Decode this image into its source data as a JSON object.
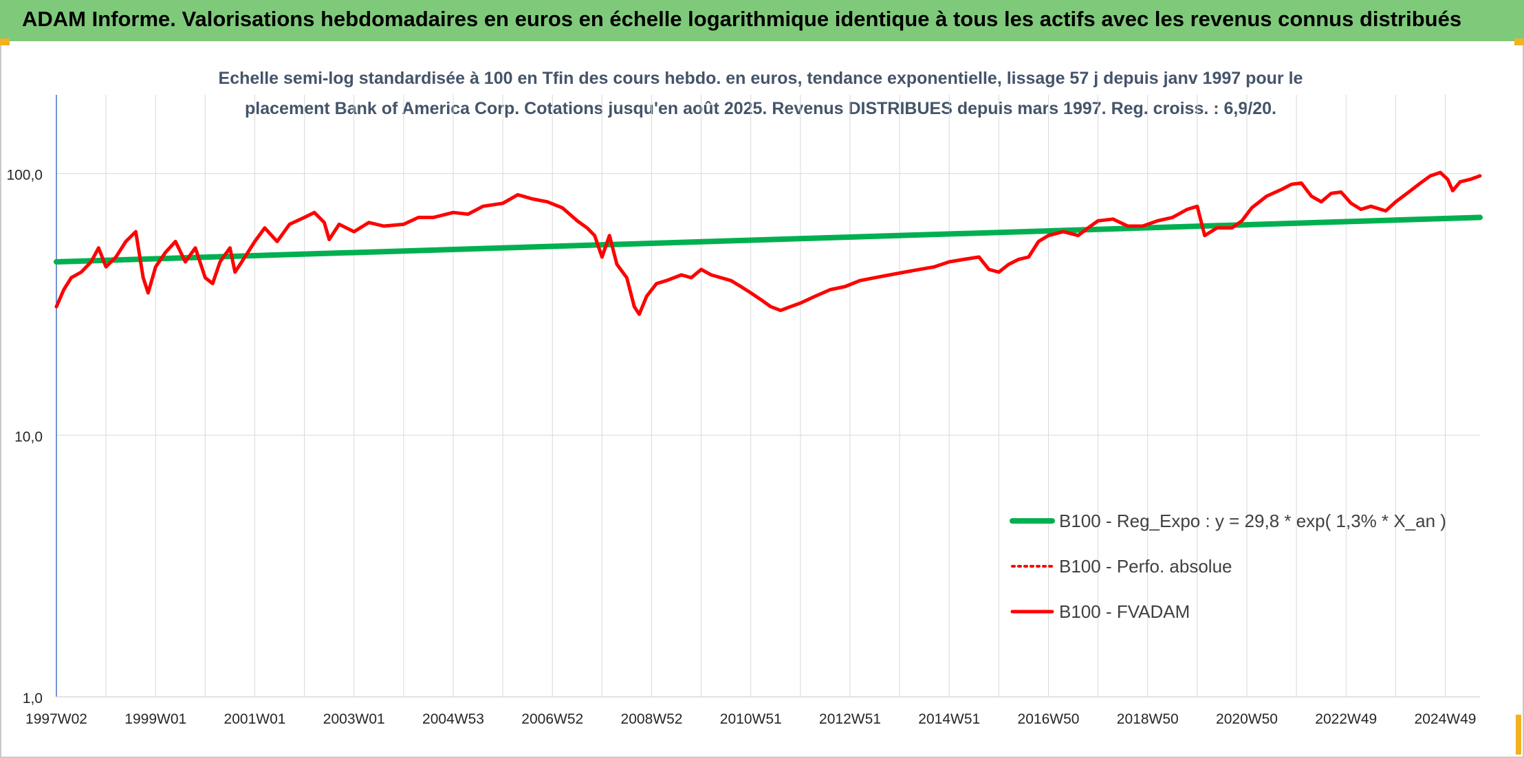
{
  "header": {
    "title": "ADAM Informe. Valorisations hebdomadaires en euros en échelle logarithmique identique à tous les actifs avec les revenus connus distribués"
  },
  "chart_data": {
    "type": "line",
    "subtitle_lines": [
      "Echelle semi-log standardisée à 100 en Tfin des cours hebdo. en euros, tendance exponentielle, lissage 57 j depuis janv 1997 pour le",
      "placement Bank of America Corp. Cotations jusqu'en août 2025. Revenus DISTRIBUES depuis mars 1997. Reg. croiss. : 6,9/20."
    ],
    "y_scale": "log",
    "ylim": [
      1,
      200
    ],
    "y_ticks": [
      {
        "value": 1,
        "label": "1,0"
      },
      {
        "value": 10,
        "label": "10,0"
      },
      {
        "value": 100,
        "label": "100,0"
      }
    ],
    "xlim": [
      1997.0,
      2025.7
    ],
    "x_ticks": [
      {
        "label": "1997W02",
        "x": 1997.0
      },
      {
        "label": "1999W01",
        "x": 1999.0
      },
      {
        "label": "2001W01",
        "x": 2001.0
      },
      {
        "label": "2003W01",
        "x": 2003.0
      },
      {
        "label": "2004W53",
        "x": 2005.0
      },
      {
        "label": "2006W52",
        "x": 2007.0
      },
      {
        "label": "2008W52",
        "x": 2009.0
      },
      {
        "label": "2010W51",
        "x": 2011.0
      },
      {
        "label": "2012W51",
        "x": 2013.0
      },
      {
        "label": "2014W51",
        "x": 2015.0
      },
      {
        "label": "2016W50",
        "x": 2017.0
      },
      {
        "label": "2018W50",
        "x": 2019.0
      },
      {
        "label": "2020W50",
        "x": 2021.0
      },
      {
        "label": "2022W49",
        "x": 2023.0
      },
      {
        "label": "2024W49",
        "x": 2025.0
      }
    ],
    "vertical_grid_step": 1,
    "grid": true,
    "legend_position": "bottom-right",
    "series": [
      {
        "name": "B100 - Reg_Expo : y = 29,8 * exp( 1,3% *  X_an )",
        "color": "#00b050",
        "style": "solid",
        "points": [
          [
            1997.0,
            46
          ],
          [
            2025.7,
            68
          ]
        ]
      },
      {
        "name": "B100 - Perfo. absolue",
        "color": "#ff0000",
        "style": "dotted",
        "points": []
      },
      {
        "name": "B100 - FVADAM",
        "color": "#ff0000",
        "style": "solid",
        "points": [
          [
            1997.0,
            31
          ],
          [
            1997.15,
            36
          ],
          [
            1997.3,
            40
          ],
          [
            1997.5,
            42
          ],
          [
            1997.7,
            46
          ],
          [
            1997.85,
            52
          ],
          [
            1998.0,
            44
          ],
          [
            1998.2,
            48
          ],
          [
            1998.4,
            55
          ],
          [
            1998.6,
            60
          ],
          [
            1998.75,
            40
          ],
          [
            1998.85,
            35
          ],
          [
            1999.0,
            44
          ],
          [
            1999.2,
            50
          ],
          [
            1999.4,
            55
          ],
          [
            1999.6,
            46
          ],
          [
            1999.8,
            52
          ],
          [
            2000.0,
            40
          ],
          [
            2000.15,
            38
          ],
          [
            2000.3,
            46
          ],
          [
            2000.5,
            52
          ],
          [
            2000.6,
            42
          ],
          [
            2000.8,
            48
          ],
          [
            2001.0,
            55
          ],
          [
            2001.2,
            62
          ],
          [
            2001.45,
            55
          ],
          [
            2001.7,
            64
          ],
          [
            2002.0,
            68
          ],
          [
            2002.2,
            71
          ],
          [
            2002.4,
            65
          ],
          [
            2002.5,
            56
          ],
          [
            2002.7,
            64
          ],
          [
            2003.0,
            60
          ],
          [
            2003.3,
            65
          ],
          [
            2003.6,
            63
          ],
          [
            2004.0,
            64
          ],
          [
            2004.3,
            68
          ],
          [
            2004.6,
            68
          ],
          [
            2005.0,
            71
          ],
          [
            2005.3,
            70
          ],
          [
            2005.6,
            75
          ],
          [
            2006.0,
            77
          ],
          [
            2006.3,
            83
          ],
          [
            2006.6,
            80
          ],
          [
            2006.9,
            78
          ],
          [
            2007.2,
            74
          ],
          [
            2007.5,
            66
          ],
          [
            2007.7,
            62
          ],
          [
            2007.85,
            58
          ],
          [
            2008.0,
            48
          ],
          [
            2008.15,
            58
          ],
          [
            2008.3,
            45
          ],
          [
            2008.5,
            40
          ],
          [
            2008.65,
            31
          ],
          [
            2008.75,
            29
          ],
          [
            2008.9,
            34
          ],
          [
            2009.1,
            38
          ],
          [
            2009.3,
            39
          ],
          [
            2009.6,
            41
          ],
          [
            2009.8,
            40
          ],
          [
            2010.0,
            43
          ],
          [
            2010.2,
            41
          ],
          [
            2010.4,
            40
          ],
          [
            2010.6,
            39
          ],
          [
            2010.8,
            37
          ],
          [
            2011.0,
            35
          ],
          [
            2011.2,
            33
          ],
          [
            2011.4,
            31
          ],
          [
            2011.6,
            30
          ],
          [
            2011.8,
            31
          ],
          [
            2012.0,
            32
          ],
          [
            2012.3,
            34
          ],
          [
            2012.6,
            36
          ],
          [
            2012.9,
            37
          ],
          [
            2013.2,
            39
          ],
          [
            2013.5,
            40
          ],
          [
            2013.8,
            41
          ],
          [
            2014.1,
            42
          ],
          [
            2014.4,
            43
          ],
          [
            2014.7,
            44
          ],
          [
            2015.0,
            46
          ],
          [
            2015.3,
            47
          ],
          [
            2015.6,
            48
          ],
          [
            2015.8,
            43
          ],
          [
            2016.0,
            42
          ],
          [
            2016.2,
            45
          ],
          [
            2016.4,
            47
          ],
          [
            2016.6,
            48
          ],
          [
            2016.8,
            55
          ],
          [
            2017.0,
            58
          ],
          [
            2017.3,
            60
          ],
          [
            2017.6,
            58
          ],
          [
            2017.8,
            62
          ],
          [
            2018.0,
            66
          ],
          [
            2018.3,
            67
          ],
          [
            2018.6,
            63
          ],
          [
            2018.9,
            63
          ],
          [
            2019.2,
            66
          ],
          [
            2019.5,
            68
          ],
          [
            2019.8,
            73
          ],
          [
            2020.0,
            75
          ],
          [
            2020.15,
            58
          ],
          [
            2020.4,
            62
          ],
          [
            2020.7,
            62
          ],
          [
            2020.9,
            66
          ],
          [
            2021.1,
            74
          ],
          [
            2021.4,
            82
          ],
          [
            2021.7,
            87
          ],
          [
            2021.9,
            91
          ],
          [
            2022.1,
            92
          ],
          [
            2022.3,
            82
          ],
          [
            2022.5,
            78
          ],
          [
            2022.7,
            84
          ],
          [
            2022.9,
            85
          ],
          [
            2023.1,
            77
          ],
          [
            2023.3,
            73
          ],
          [
            2023.5,
            75
          ],
          [
            2023.8,
            72
          ],
          [
            2024.0,
            78
          ],
          [
            2024.3,
            86
          ],
          [
            2024.5,
            92
          ],
          [
            2024.7,
            98
          ],
          [
            2024.9,
            101
          ],
          [
            2025.05,
            95
          ],
          [
            2025.15,
            86
          ],
          [
            2025.3,
            93
          ],
          [
            2025.5,
            95
          ],
          [
            2025.7,
            98
          ]
        ]
      }
    ],
    "legend": [
      {
        "label": "B100 - Reg_Expo : y = 29,8 * exp( 1,3% *  X_an )",
        "color": "#00b050",
        "style": "solid"
      },
      {
        "label": "B100 - Perfo. absolue",
        "color": "#ff0000",
        "style": "dotted"
      },
      {
        "label": "B100 - FVADAM",
        "color": "#ff0000",
        "style": "solid"
      }
    ]
  },
  "colors": {
    "banner": "#7fc97b",
    "corner_accent": "#f2b21e",
    "grid": "#d9d9d9",
    "axis": "#4472c4",
    "subtitle": "#44546a"
  }
}
